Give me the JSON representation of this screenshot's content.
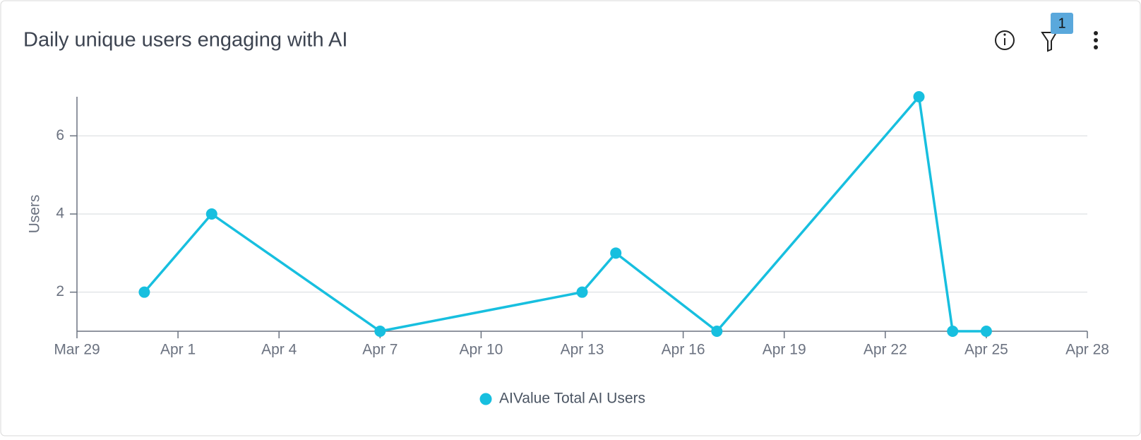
{
  "chart_data": {
    "type": "line",
    "title": "Daily unique users engaging with AI",
    "ylabel": "Users",
    "x": [
      "Mar 31",
      "Apr 2",
      "Apr 7",
      "Apr 13",
      "Apr 14",
      "Apr 17",
      "Apr 23",
      "Apr 24",
      "Apr 25"
    ],
    "series": [
      {
        "name": "AIValue Total AI Users",
        "color": "#17bfdf",
        "values": [
          2,
          4,
          1,
          2,
          3,
          1,
          7,
          1,
          1
        ]
      }
    ],
    "xlim": [
      "Mar 29",
      "Apr 28"
    ],
    "xticks": [
      "Mar 29",
      "Apr 1",
      "Apr 4",
      "Apr 7",
      "Apr 10",
      "Apr 13",
      "Apr 16",
      "Apr 19",
      "Apr 22",
      "Apr 25",
      "Apr 28"
    ],
    "ylim": [
      1,
      7
    ],
    "yticks": [
      2,
      4,
      6
    ],
    "grid": true,
    "legend": "bottom"
  },
  "toolbar": {
    "filter_badge": 1
  }
}
